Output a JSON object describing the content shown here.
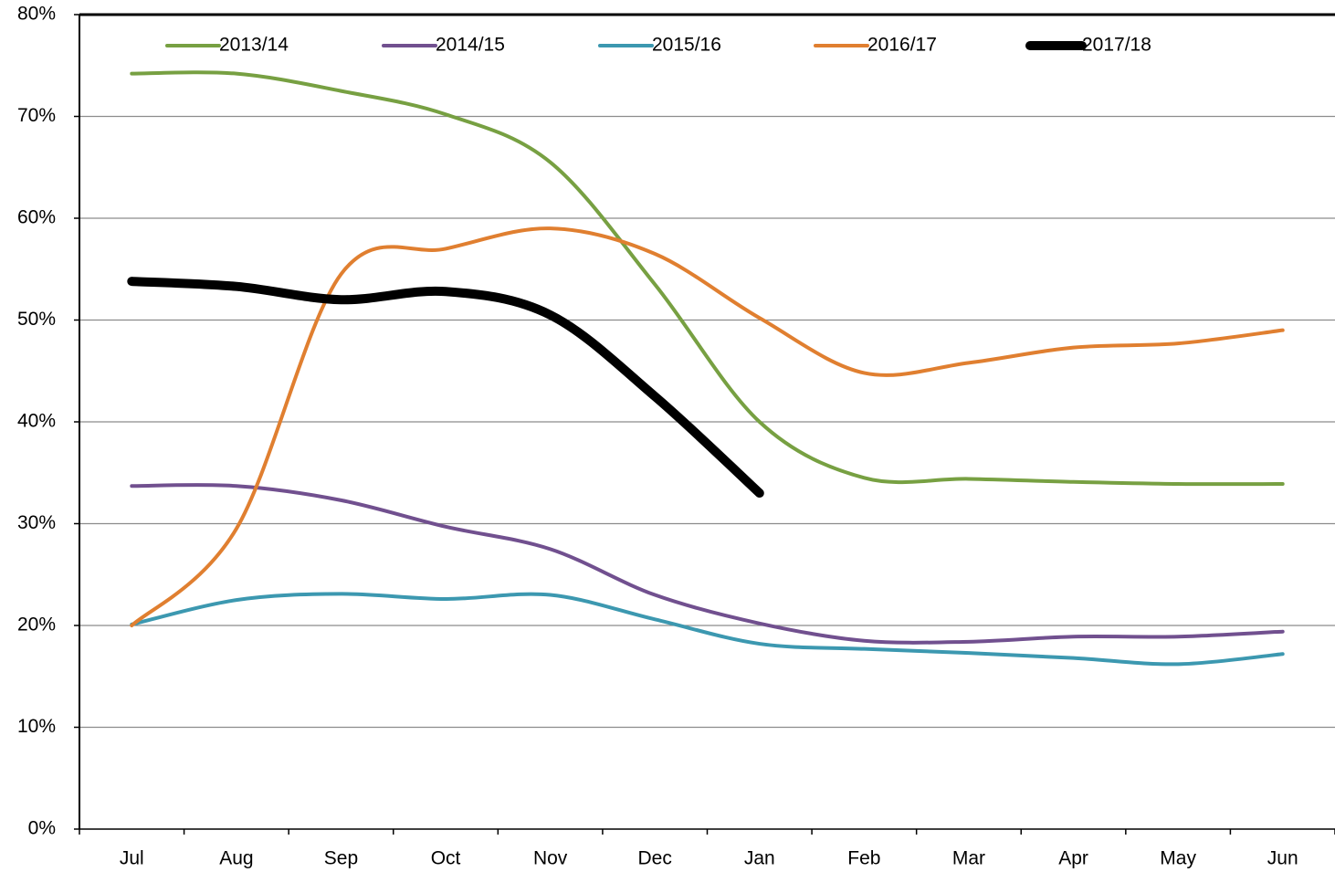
{
  "chart_data": {
    "type": "line",
    "categories": [
      "Jul",
      "Aug",
      "Sep",
      "Oct",
      "Nov",
      "Dec",
      "Jan",
      "Feb",
      "Mar",
      "Apr",
      "May",
      "Jun"
    ],
    "series": [
      {
        "name": "2013/14",
        "color": "#77a042",
        "width": 4,
        "values": [
          74.2,
          74.2,
          72.5,
          70.2,
          65.5,
          53.5,
          40,
          34.5,
          34.4,
          34.1,
          33.9,
          33.9
        ]
      },
      {
        "name": "2014/15",
        "color": "#71508f",
        "width": 4,
        "values": [
          33.7,
          33.7,
          32.3,
          29.7,
          27.5,
          23,
          20.2,
          18.5,
          18.4,
          18.9,
          18.9,
          19.4
        ]
      },
      {
        "name": "2015/16",
        "color": "#3c98b0",
        "width": 4,
        "values": [
          20.1,
          22.5,
          23.1,
          22.6,
          23,
          20.6,
          18.2,
          17.7,
          17.3,
          16.8,
          16.2,
          17.2
        ]
      },
      {
        "name": "2016/17",
        "color": "#e07f30",
        "width": 4,
        "values": [
          20,
          29.5,
          54.5,
          57,
          59,
          56.5,
          50.2,
          44.8,
          45.8,
          47.3,
          47.7,
          49
        ]
      },
      {
        "name": "2017/18",
        "color": "#000000",
        "width": 10,
        "values": [
          53.8,
          53.3,
          52,
          52.8,
          50.5,
          42.5,
          33,
          null,
          null,
          null,
          null,
          null
        ]
      }
    ],
    "ylim": [
      0,
      80
    ],
    "yticks": [
      {
        "value": 0,
        "label": "0%"
      },
      {
        "value": 10,
        "label": "10%"
      },
      {
        "value": 20,
        "label": "20%"
      },
      {
        "value": 30,
        "label": "30%"
      },
      {
        "value": 40,
        "label": "40%"
      },
      {
        "value": 50,
        "label": "50%"
      },
      {
        "value": 60,
        "label": "60%"
      },
      {
        "value": 70,
        "label": "70%"
      },
      {
        "value": 80,
        "label": "80%"
      }
    ],
    "grid": true,
    "smooth": true,
    "legend": "top"
  }
}
